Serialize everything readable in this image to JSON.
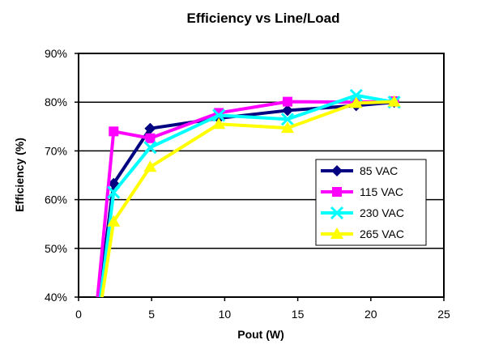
{
  "chart_data": {
    "type": "line",
    "title": "Efficiency vs Line/Load",
    "xlabel": "Pout (W)",
    "ylabel": "Efficiency (%)",
    "xlim": [
      0,
      25
    ],
    "ylim": [
      40,
      90
    ],
    "x_ticks": [
      0,
      5,
      10,
      15,
      20,
      25
    ],
    "y_ticks": [
      40,
      50,
      60,
      70,
      80,
      90
    ],
    "x_tick_labels": [
      "0",
      "5",
      "10",
      "15",
      "20",
      "25"
    ],
    "y_tick_labels": [
      "40%",
      "50%",
      "60%",
      "70%",
      "80%",
      "90%"
    ],
    "grid": "horizontal",
    "legend_position": "right",
    "series": [
      {
        "name": "85 VAC",
        "color": "#000080",
        "marker": "diamond",
        "points": [
          [
            1.4,
            40
          ],
          [
            2.4,
            63.3
          ],
          [
            4.9,
            74.6
          ],
          [
            9.6,
            76.7
          ],
          [
            14.3,
            78.3
          ],
          [
            19.0,
            79.3
          ],
          [
            21.6,
            80.0
          ]
        ]
      },
      {
        "name": "115 VAC",
        "color": "#FF00FF",
        "marker": "square",
        "points": [
          [
            1.3,
            40
          ],
          [
            2.4,
            74.0
          ],
          [
            4.9,
            72.6
          ],
          [
            9.6,
            77.8
          ],
          [
            14.3,
            80.1
          ],
          [
            19.0,
            80.0
          ],
          [
            21.6,
            80.2
          ]
        ]
      },
      {
        "name": "230 VAC",
        "color": "#00FFFF",
        "marker": "x",
        "points": [
          [
            1.5,
            40
          ],
          [
            2.4,
            61.5
          ],
          [
            4.9,
            70.7
          ],
          [
            9.6,
            77.3
          ],
          [
            14.3,
            76.5
          ],
          [
            19.0,
            81.4
          ],
          [
            21.6,
            80.0
          ]
        ]
      },
      {
        "name": "265 VAC",
        "color": "#FFFF00",
        "marker": "triangle",
        "points": [
          [
            1.6,
            40
          ],
          [
            2.4,
            55.5
          ],
          [
            4.9,
            66.7
          ],
          [
            9.6,
            75.5
          ],
          [
            14.3,
            74.7
          ],
          [
            19.0,
            79.8
          ],
          [
            21.6,
            80.1
          ]
        ]
      }
    ]
  }
}
